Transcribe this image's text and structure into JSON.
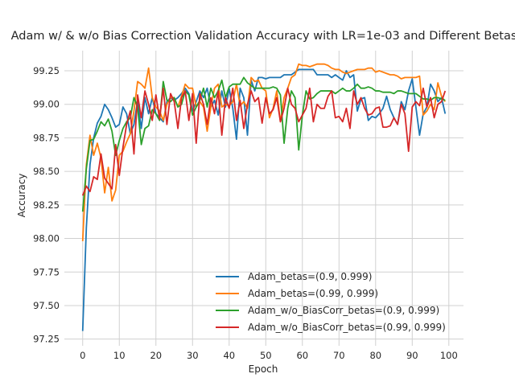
{
  "chart_data": {
    "type": "line",
    "title": "Adam w/ & w/o Bias Correction Validation Accuracy with LR=1e-03 and Different Betas",
    "xlabel": "Epoch",
    "ylabel": "Accuracy",
    "xlim": [
      -5,
      104
    ],
    "ylim": [
      97.2,
      99.4
    ],
    "xticks": [
      "0",
      "10",
      "20",
      "30",
      "40",
      "50",
      "60",
      "70",
      "80",
      "90",
      "100"
    ],
    "yticks": [
      "97.25",
      "97.50",
      "97.75",
      "98.00",
      "98.25",
      "98.50",
      "98.75",
      "99.00",
      "99.25"
    ],
    "grid": true,
    "legend_position": "lower-right",
    "series": [
      {
        "name": "Adam_betas=(0.9, 0.999)",
        "color": "#1f77b4",
        "values": [
          97.31,
          98.08,
          98.55,
          98.75,
          98.86,
          98.91,
          99.0,
          98.96,
          98.9,
          98.83,
          98.85,
          98.98,
          98.93,
          98.78,
          98.85,
          99.03,
          98.82,
          99.05,
          98.93,
          99.05,
          98.93,
          98.9,
          98.87,
          99.02,
          99.05,
          99.03,
          99.05,
          99.08,
          99.12,
          99.08,
          98.95,
          99.02,
          99.1,
          99.05,
          99.12,
          98.98,
          99.03,
          98.92,
          99.1,
          98.98,
          99.12,
          98.97,
          98.74,
          99.12,
          99.05,
          98.77,
          99.18,
          99.1,
          99.2,
          99.2,
          99.19,
          99.2,
          99.2,
          99.2,
          99.2,
          99.22,
          99.22,
          99.22,
          99.24,
          99.26,
          99.26,
          99.26,
          99.26,
          99.26,
          99.22,
          99.22,
          99.22,
          99.22,
          99.2,
          99.22,
          99.2,
          99.18,
          99.25,
          99.2,
          99.22,
          98.95,
          99.04,
          99.05,
          98.88,
          98.91,
          98.9,
          98.93,
          98.97,
          99.06,
          98.96,
          98.9,
          98.85,
          99.02,
          98.96,
          99.1,
          99.19,
          98.98,
          98.77,
          98.93,
          98.98,
          99.15,
          99.1,
          99.02,
          99.05,
          98.93
        ]
      },
      {
        "name": "Adam_betas=(0.99, 0.999)",
        "color": "#ff7f0e",
        "values": [
          97.98,
          98.55,
          98.77,
          98.62,
          98.71,
          98.6,
          98.34,
          98.53,
          98.28,
          98.36,
          98.62,
          98.65,
          98.72,
          98.78,
          98.95,
          99.17,
          99.15,
          99.12,
          99.27,
          99.05,
          98.98,
          98.95,
          98.88,
          99.0,
          99.05,
          99.05,
          98.98,
          99.06,
          99.15,
          99.12,
          99.12,
          98.98,
          99.02,
          98.98,
          98.8,
          98.98,
          99.12,
          99.15,
          98.98,
          99.0,
          98.99,
          99.02,
          99.15,
          98.99,
          99.02,
          98.97,
          99.2,
          99.17,
          99.18,
          99.12,
          99.1,
          98.9,
          98.97,
          99.1,
          98.87,
          99.05,
          99.12,
          99.2,
          99.22,
          99.3,
          99.29,
          99.29,
          99.28,
          99.29,
          99.3,
          99.3,
          99.3,
          99.29,
          99.27,
          99.26,
          99.26,
          99.24,
          99.23,
          99.24,
          99.25,
          99.26,
          99.26,
          99.26,
          99.27,
          99.27,
          99.24,
          99.25,
          99.24,
          99.23,
          99.22,
          99.22,
          99.21,
          99.19,
          99.2,
          99.2,
          99.2,
          99.2,
          99.21,
          98.92,
          98.95,
          99.0,
          98.96,
          99.16,
          99.06,
          99.02
        ]
      },
      {
        "name": "Adam_w/o_BiasCorr_betas=(0.9, 0.999)",
        "color": "#2ca02c",
        "values": [
          98.2,
          98.52,
          98.73,
          98.74,
          98.8,
          98.87,
          98.84,
          98.89,
          98.8,
          98.62,
          98.73,
          98.82,
          98.87,
          98.9,
          99.05,
          98.98,
          98.7,
          98.82,
          98.84,
          98.96,
          98.93,
          98.88,
          99.17,
          99.03,
          99.02,
          99.05,
          98.98,
          99.0,
          99.1,
          99.07,
          98.92,
          98.98,
          99.03,
          99.12,
          98.98,
          99.12,
          99.05,
          99.1,
          99.18,
          99.05,
          99.13,
          99.15,
          99.15,
          99.15,
          99.2,
          99.16,
          99.14,
          99.12,
          99.12,
          99.12,
          99.12,
          99.12,
          99.13,
          99.12,
          99.07,
          98.71,
          98.97,
          99.1,
          99.05,
          98.66,
          98.92,
          99.1,
          99.04,
          99.05,
          99.08,
          99.1,
          99.1,
          99.1,
          99.1,
          99.08,
          99.1,
          99.12,
          99.1,
          99.1,
          99.12,
          99.15,
          99.12,
          99.12,
          99.13,
          99.12,
          99.1,
          99.1,
          99.09,
          99.09,
          99.09,
          99.08,
          99.1,
          99.1,
          99.09,
          99.08,
          99.08,
          99.08,
          99.06,
          99.04,
          99.04,
          99.03,
          99.05,
          99.05,
          99.04,
          99.03
        ]
      },
      {
        "name": "Adam_w/o_BiasCorr_betas=(0.99, 0.999)",
        "color": "#d62728",
        "values": [
          98.32,
          98.39,
          98.35,
          98.46,
          98.44,
          98.63,
          98.45,
          98.41,
          98.37,
          98.7,
          98.47,
          98.68,
          98.85,
          98.95,
          98.63,
          99.07,
          98.9,
          99.1,
          99.0,
          98.88,
          99.07,
          98.89,
          99.12,
          98.85,
          99.08,
          99.02,
          98.82,
          99.05,
          99.1,
          98.88,
          99.08,
          98.71,
          99.08,
          99.0,
          98.85,
          99.05,
          98.93,
          99.1,
          98.77,
          99.05,
          98.97,
          99.12,
          98.88,
          99.03,
          98.82,
          99.0,
          99.1,
          99.02,
          99.05,
          98.86,
          99.05,
          98.93,
          98.96,
          99.05,
          98.87,
          98.97,
          99.12,
          99.0,
          98.97,
          98.87,
          98.92,
          98.97,
          99.12,
          98.87,
          99.0,
          98.97,
          98.97,
          99.06,
          99.1,
          98.9,
          98.91,
          98.87,
          98.97,
          98.82,
          99.1,
          99.0,
          99.05,
          98.97,
          98.92,
          98.93,
          98.97,
          98.98,
          98.83,
          98.83,
          98.84,
          98.9,
          98.85,
          99.0,
          98.93,
          98.65,
          98.98,
          99.02,
          98.99,
          99.12,
          98.98,
          99.05,
          98.9,
          99.0,
          99.02,
          99.1
        ]
      }
    ]
  }
}
